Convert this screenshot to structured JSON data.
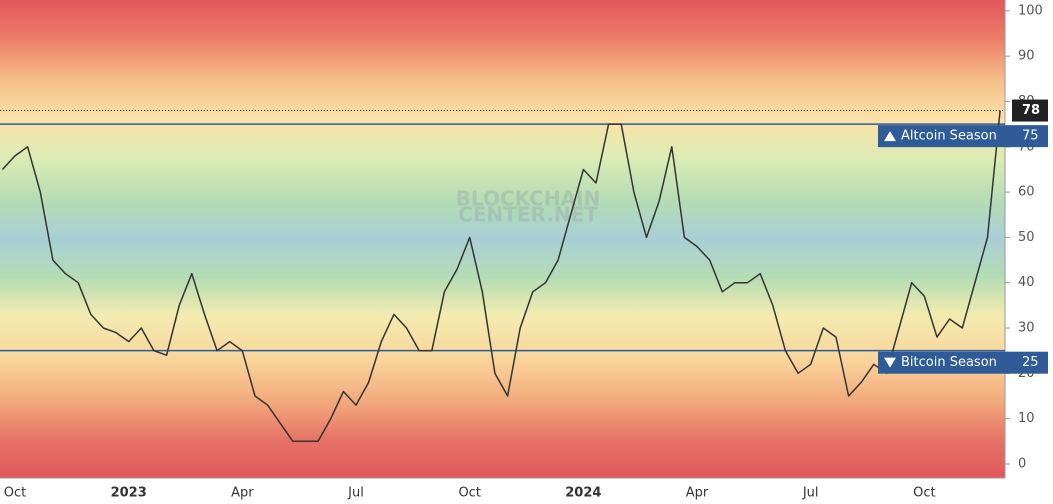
{
  "chart_data": {
    "type": "line",
    "watermark": [
      "BLOCKCHAIN",
      "CENTER.NET"
    ],
    "categories": [
      null,
      "Oct",
      null,
      null,
      null,
      null,
      null,
      null,
      null,
      null,
      "2023",
      null,
      null,
      null,
      null,
      null,
      null,
      null,
      null,
      "Apr",
      null,
      null,
      null,
      null,
      null,
      null,
      null,
      null,
      "Jul",
      null,
      null,
      null,
      null,
      null,
      null,
      null,
      null,
      "Oct",
      null,
      null,
      null,
      null,
      null,
      null,
      null,
      null,
      "2024",
      null,
      null,
      null,
      null,
      null,
      null,
      null,
      null,
      "Apr",
      null,
      null,
      null,
      null,
      null,
      null,
      null,
      null,
      "Jul",
      null,
      null,
      null,
      null,
      null,
      null,
      null,
      null,
      "Oct",
      null,
      null,
      null,
      null,
      null,
      null
    ],
    "values": [
      65,
      68,
      70,
      60,
      45,
      42,
      40,
      33,
      30,
      29,
      27,
      30,
      25,
      24,
      35,
      42,
      33,
      25,
      27,
      25,
      15,
      13,
      9,
      5,
      5,
      5,
      10,
      16,
      13,
      18,
      27,
      33,
      30,
      25,
      25,
      38,
      43,
      50,
      38,
      20,
      15,
      30,
      38,
      40,
      45,
      55,
      65,
      62,
      75,
      75,
      60,
      50,
      58,
      70,
      50,
      48,
      45,
      38,
      40,
      40,
      42,
      35,
      25,
      20,
      22,
      30,
      28,
      15,
      18,
      22,
      20,
      30,
      40,
      37,
      28,
      32,
      30,
      40,
      50,
      78
    ],
    "color": "#333333",
    "ylim": [
      -3.1,
      102.4
    ],
    "yticks": [
      0,
      10,
      20,
      30,
      40,
      50,
      60,
      70,
      80,
      90,
      100
    ],
    "levels": [
      {
        "label": "Altcoin Season",
        "value": 75,
        "color": "#2f5b98"
      },
      {
        "label": "Bitcoin Season",
        "value": 25,
        "color": "#2f5b98"
      }
    ]
  }
}
